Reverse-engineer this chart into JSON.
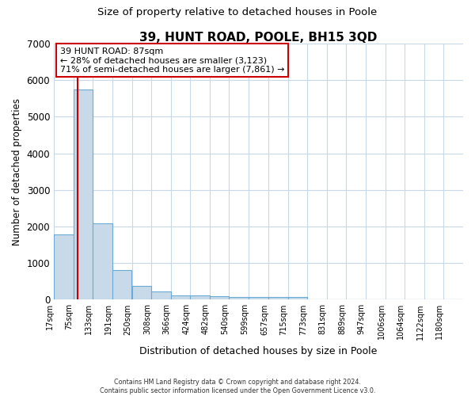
{
  "title": "39, HUNT ROAD, POOLE, BH15 3QD",
  "subtitle": "Size of property relative to detached houses in Poole",
  "xlabel": "Distribution of detached houses by size in Poole",
  "ylabel": "Number of detached properties",
  "bin_labels": [
    "17sqm",
    "75sqm",
    "133sqm",
    "191sqm",
    "250sqm",
    "308sqm",
    "366sqm",
    "424sqm",
    "482sqm",
    "540sqm",
    "599sqm",
    "657sqm",
    "715sqm",
    "773sqm",
    "831sqm",
    "889sqm",
    "947sqm",
    "1006sqm",
    "1064sqm",
    "1122sqm",
    "1180sqm"
  ],
  "bin_edges": [
    17,
    75,
    133,
    191,
    250,
    308,
    366,
    424,
    482,
    540,
    599,
    657,
    715,
    773,
    831,
    889,
    947,
    1006,
    1064,
    1122,
    1180
  ],
  "bar_heights": [
    1780,
    5750,
    2075,
    800,
    370,
    230,
    125,
    110,
    90,
    70,
    75,
    68,
    62,
    0,
    0,
    0,
    0,
    0,
    0,
    0,
    0
  ],
  "bar_color": "#c8daea",
  "bar_edge_color": "#6aaad4",
  "property_size": 87,
  "annotation_line1": "39 HUNT ROAD: 87sqm",
  "annotation_line2": "← 28% of detached houses are smaller (3,123)",
  "annotation_line3": "71% of semi-detached houses are larger (7,861) →",
  "vline_color": "#cc0000",
  "annotation_box_edge_color": "#cc0000",
  "ylim": [
    0,
    7000
  ],
  "yticks": [
    0,
    1000,
    2000,
    3000,
    4000,
    5000,
    6000,
    7000
  ],
  "footer_line1": "Contains HM Land Registry data © Crown copyright and database right 2024.",
  "footer_line2": "Contains public sector information licensed under the Open Government Licence v3.0.",
  "background_color": "#ffffff",
  "plot_background_color": "#ffffff",
  "grid_color": "#c8d8e8"
}
